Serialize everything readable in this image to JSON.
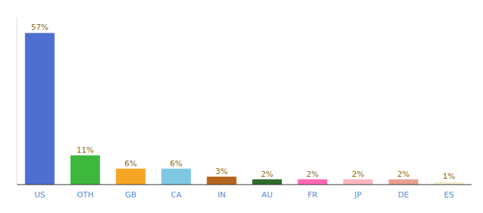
{
  "chart_data": {
    "type": "bar",
    "categories": [
      "US",
      "OTH",
      "GB",
      "CA",
      "IN",
      "AU",
      "FR",
      "JP",
      "DE",
      "ES"
    ],
    "values": [
      57,
      11,
      6,
      6,
      3,
      2,
      2,
      2,
      2,
      1
    ],
    "value_labels": [
      "57%",
      "11%",
      "6%",
      "6%",
      "3%",
      "2%",
      "2%",
      "2%",
      "2%",
      "1%"
    ],
    "colors": [
      "#4f6fd0",
      "#3db83d",
      "#f5a623",
      "#7ec8e3",
      "#b5651d",
      "#2d6a2d",
      "#ff69b4",
      "#ffb6c1",
      "#e8a090",
      "#f5f0d0"
    ],
    "ylim": [
      0,
      63
    ],
    "data_labels": true,
    "tick_labels": "x",
    "grid": false
  }
}
